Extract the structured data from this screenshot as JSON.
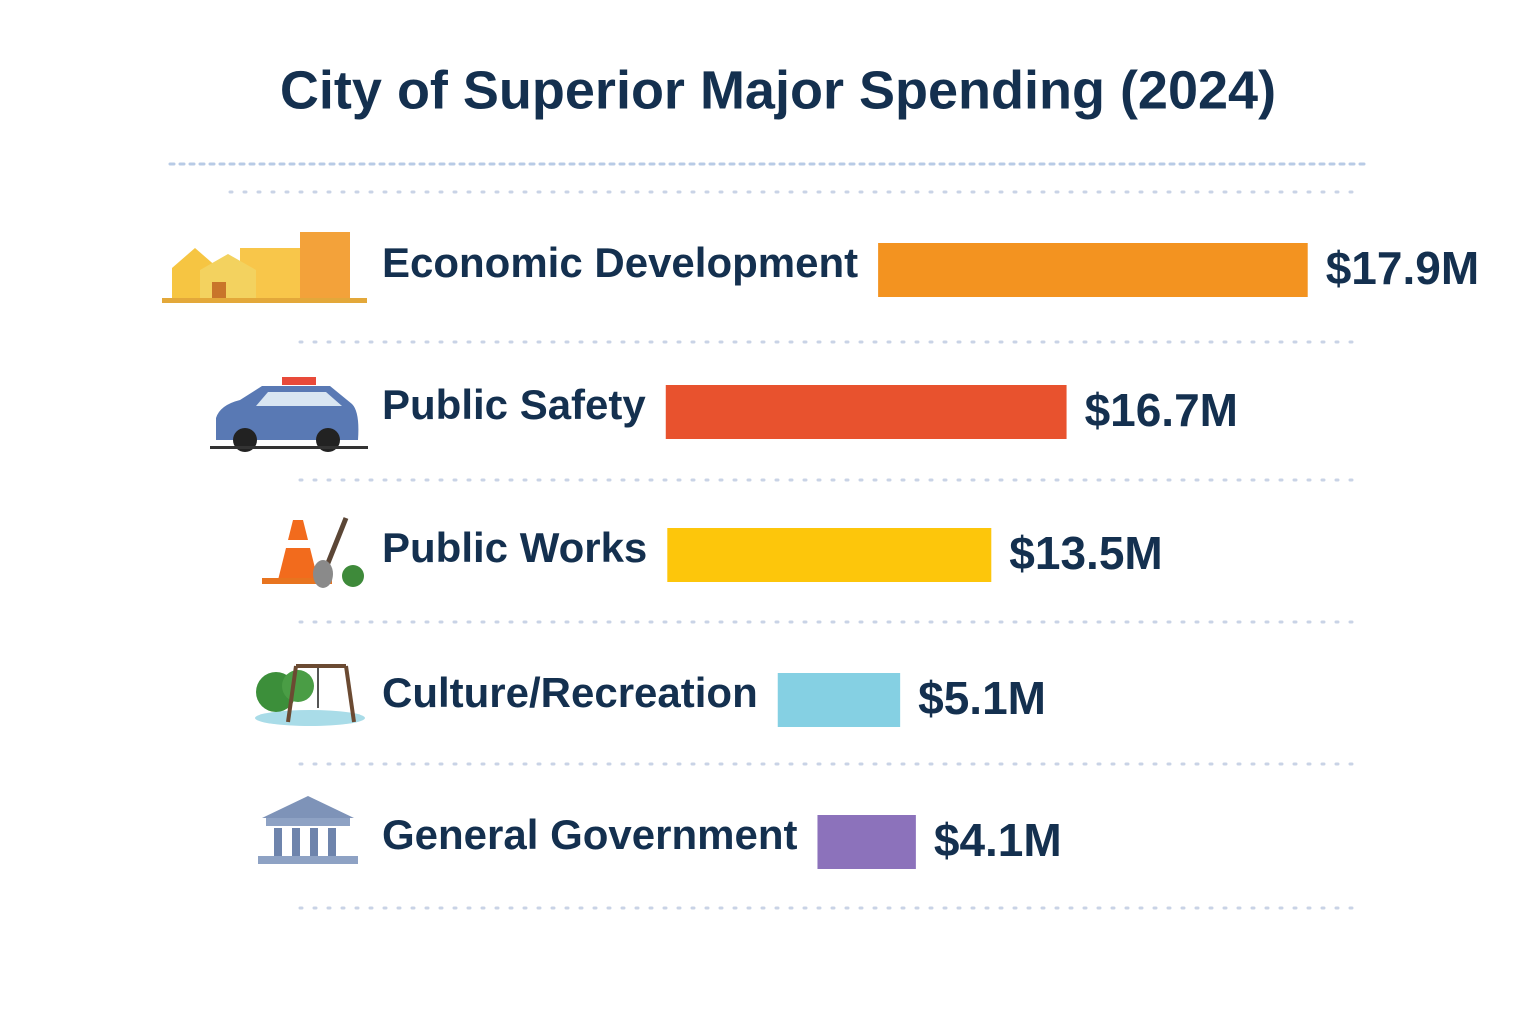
{
  "chart_data": {
    "type": "bar",
    "title": "City of Superior Major Spending (2024)",
    "categories": [
      "Economic Development",
      "Public Safety",
      "Public Works",
      "Culture/Recreation",
      "General Government"
    ],
    "series": [
      {
        "values": [
          17.9,
          16.7,
          13.5,
          5.1,
          4.1
        ],
        "value_labels": [
          "$17.9M",
          "$16.7M",
          "$13.5M",
          "$5.1M",
          "$4.1M"
        ],
        "colors": [
          "#f39320",
          "#e8522e",
          "#fdc60b",
          "#85d0e3",
          "#8c72bb"
        ]
      }
    ]
  }
}
